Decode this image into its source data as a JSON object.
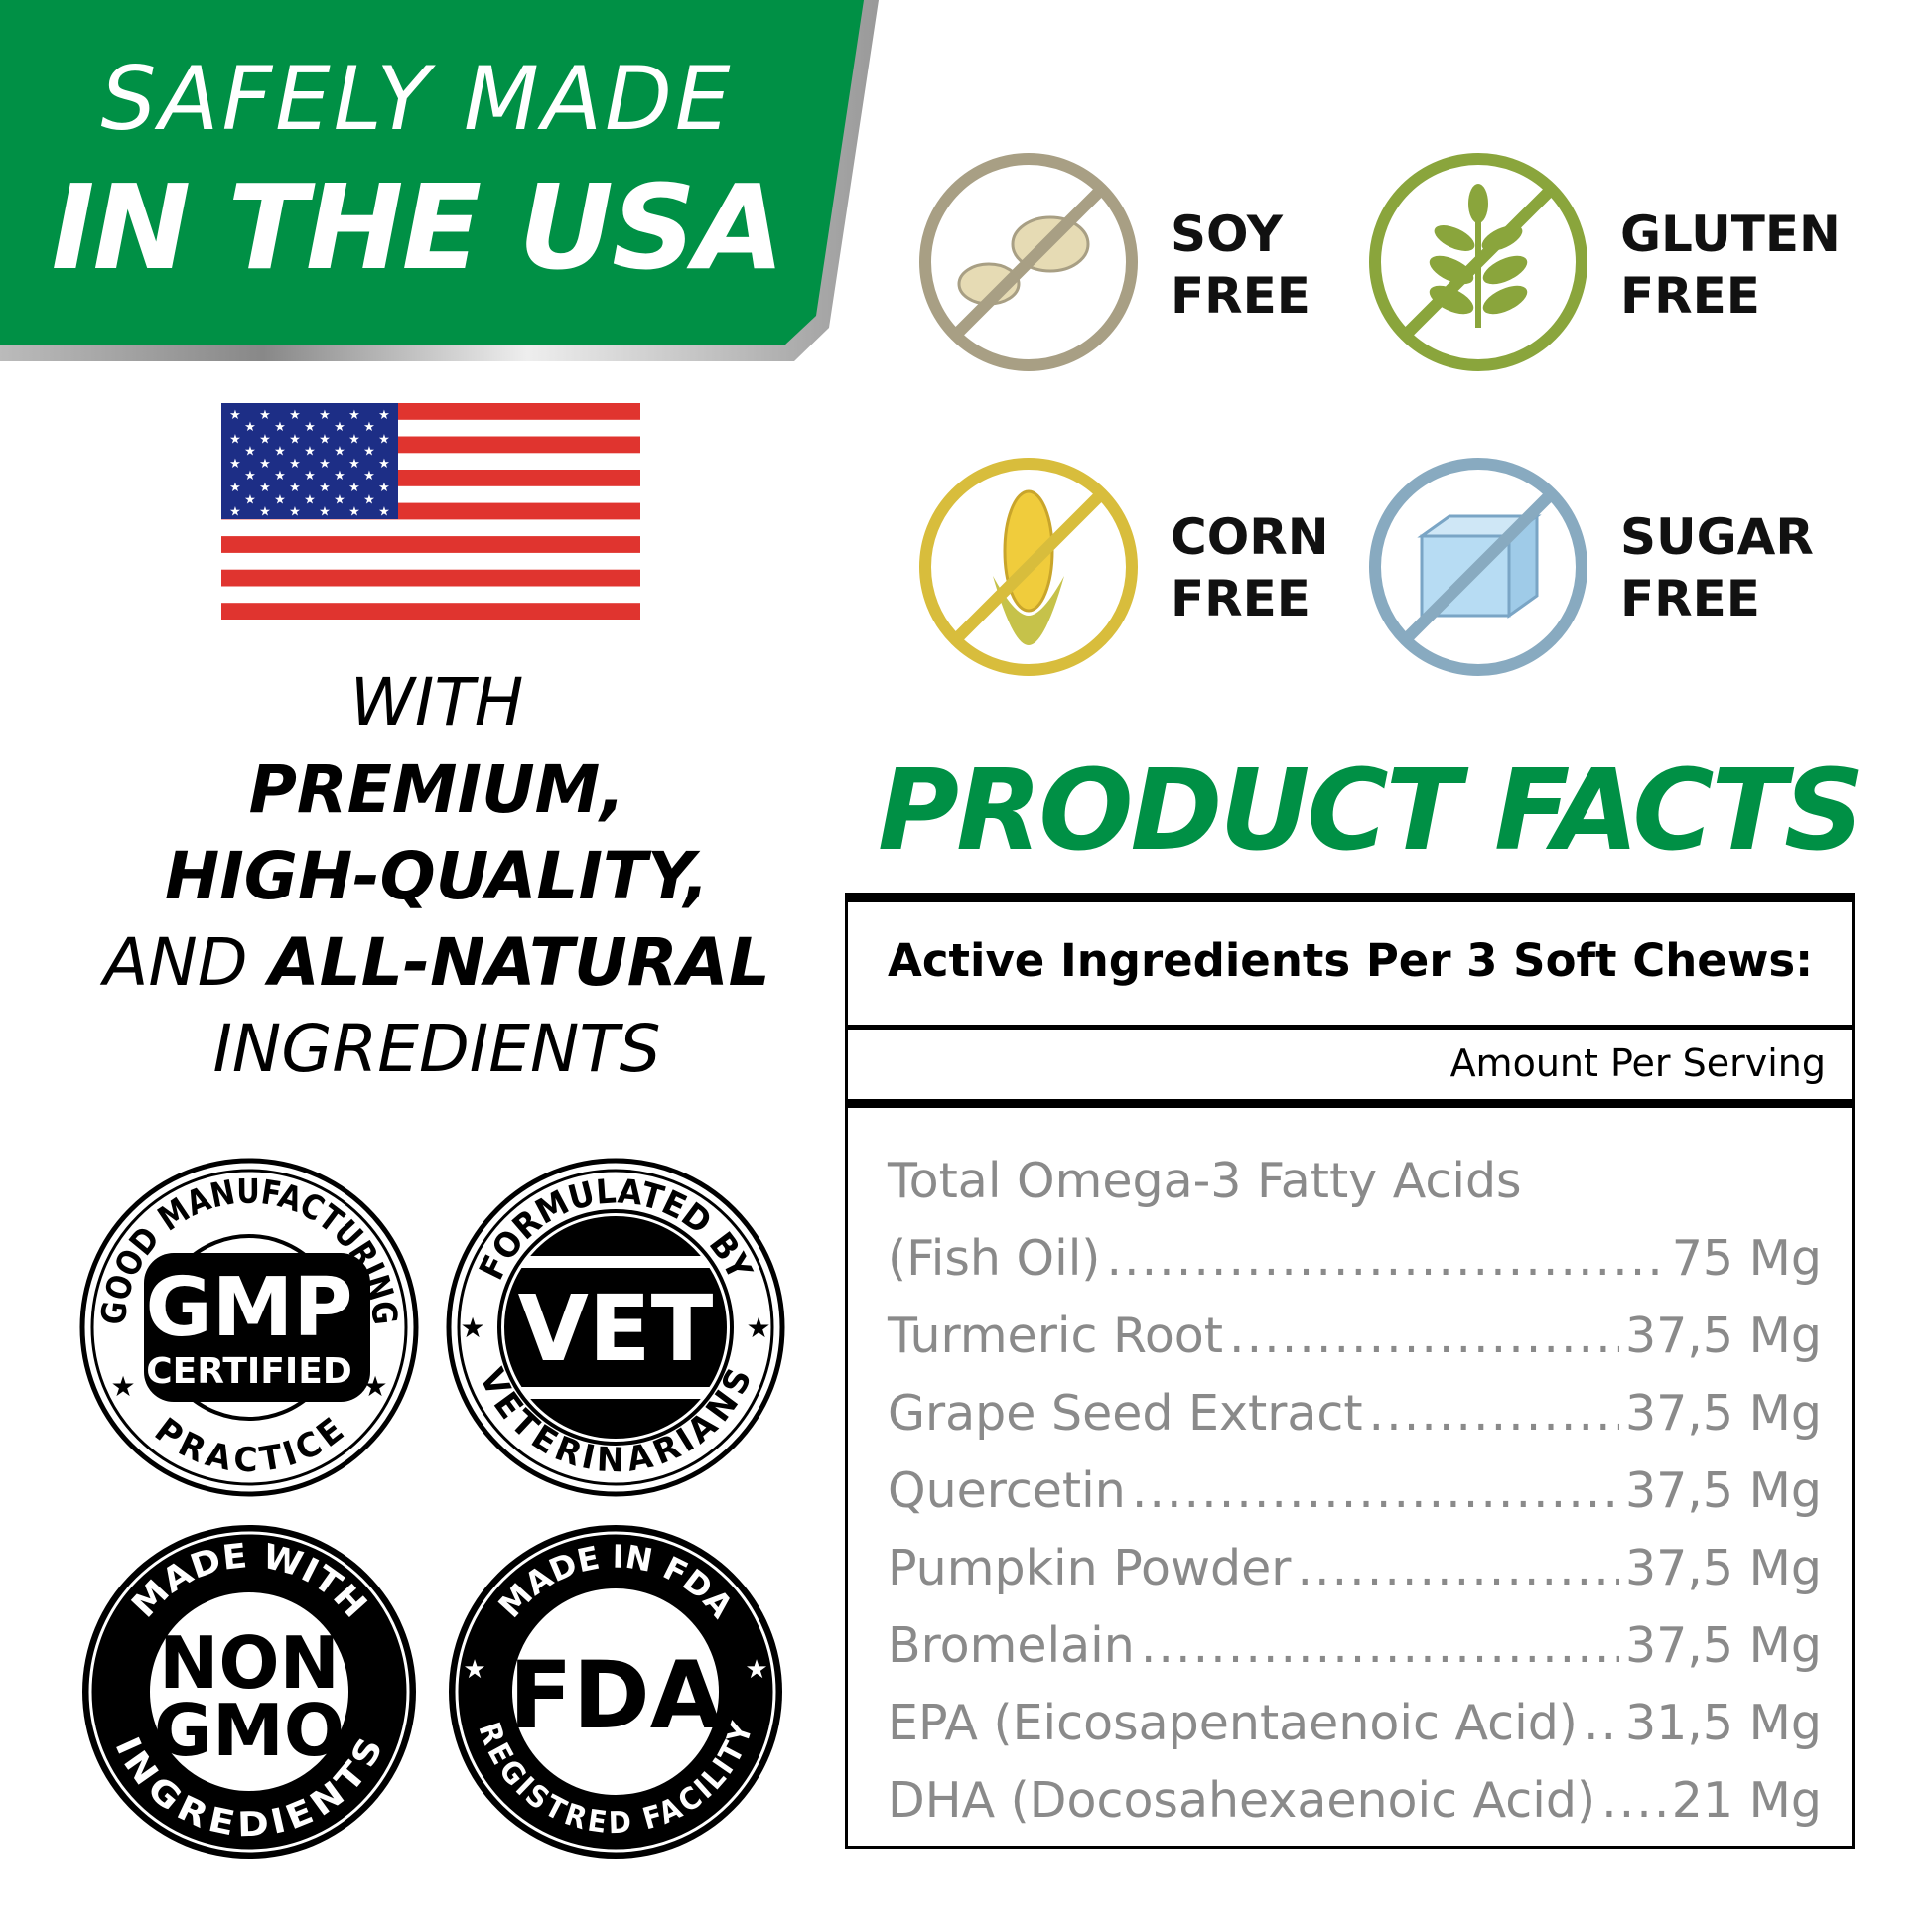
{
  "banner": {
    "line1": "SAFELY MADE",
    "line2": "IN THE USA",
    "color": "#009045"
  },
  "tagline": {
    "l1": "WITH",
    "l2": "PREMIUM,",
    "l3": "HIGH-QUALITY,",
    "l4a": "AND",
    "l4b": "ALL-NATURAL",
    "l5": "INGREDIENTS"
  },
  "badges": [
    {
      "top": "GOOD MANUFACTURING",
      "center1": "GMP",
      "center2": "CERTIFIED",
      "bottom": "PRACTICE"
    },
    {
      "top": "FORMULATED BY",
      "center1": "VET",
      "bottom": "VETERINARIANS"
    },
    {
      "top": "MADE WITH",
      "center1": "NON",
      "center2": "GMO",
      "bottom": "INGREDIENTS"
    },
    {
      "top": "MADE IN FDA",
      "center1": "FDA",
      "bottom": "REGISTRED FACILITY"
    }
  ],
  "free_icons": [
    {
      "l1": "SOY",
      "l2": "FREE",
      "icon": "soybean-icon",
      "color": "#a89f84"
    },
    {
      "l1": "GLUTEN",
      "l2": "FREE",
      "icon": "wheat-icon",
      "color": "#8aa53c"
    },
    {
      "l1": "CORN",
      "l2": "FREE",
      "icon": "corn-icon",
      "color": "#d8bd3c"
    },
    {
      "l1": "SUGAR",
      "l2": "FREE",
      "icon": "sugar-cube-icon",
      "color": "#88aac0"
    }
  ],
  "facts": {
    "title": "PRODUCT FACTS",
    "header": "Active Ingredients Per 3 Soft Chews:",
    "subheader": "Amount Per Serving",
    "first_line": "Total Omega-3 Fatty Acids",
    "rows": [
      {
        "name": "(Fish Oil)",
        "amount": "75 Mg"
      },
      {
        "name": "Turmeric Root",
        "amount": "37,5 Mg"
      },
      {
        "name": "Grape Seed Extract",
        "amount": "37,5 Mg"
      },
      {
        "name": "Quercetin",
        "amount": "37,5 Mg"
      },
      {
        "name": "Pumpkin Powder",
        "amount": "37,5 Mg"
      },
      {
        "name": "Bromelain",
        "amount": "37,5 Mg"
      },
      {
        "name": "EPA (Eicosapentaenoic Acid)",
        "amount": "31,5 Mg"
      },
      {
        "name": "DHA (Docosahexaenoic Acid)",
        "amount": "21 Mg"
      }
    ]
  }
}
